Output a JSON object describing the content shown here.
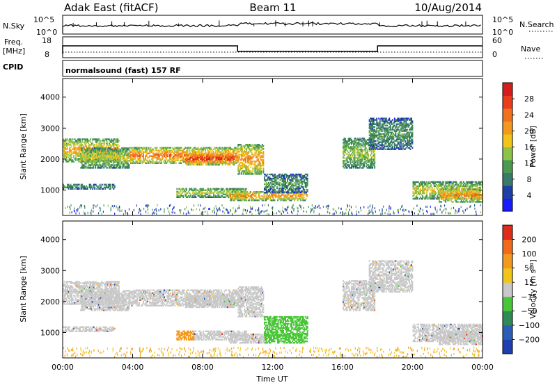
{
  "header": {
    "station": "Adak East (fitACF)",
    "beam": "Beam 11",
    "date": "10/Aug/2014"
  },
  "strips": {
    "nsky_label": "N.Sky",
    "nsky_ticks": [
      "10^5",
      "10^0"
    ],
    "nsearch_label": "N.Search",
    "freq_label": [
      "Freq.",
      "[MHz]"
    ],
    "freq_ticks": [
      "18",
      "8"
    ],
    "nave_label": "Nave",
    "nave_ticks": [
      "60",
      "0"
    ],
    "cpid_label": "CPID",
    "cpid_text": "normalsound (fast) 157 RF"
  },
  "chart_data": [
    {
      "type": "heatmap",
      "title": "",
      "ylabel": "Slant Range [km]",
      "xlabel": "",
      "yticks": [
        "1000",
        "2000",
        "3000",
        "4000"
      ],
      "xticks": [
        "00:00",
        "04:00",
        "08:00",
        "12:00",
        "16:00",
        "20:00",
        "00:00"
      ],
      "xlim": [
        "00:00",
        "24:00"
      ],
      "ylim": [
        180,
        4600
      ],
      "colorbar": {
        "label": "Power [dB]",
        "ticks": [
          "4",
          "8",
          "12",
          "16",
          "20",
          "24",
          "28"
        ],
        "colors": [
          "#1a1aff",
          "#1f3fa6",
          "#3a7a6a",
          "#4b9a4f",
          "#8cc34a",
          "#f0c419",
          "#f29a1d",
          "#f2711c",
          "#ea3b1c",
          "#d61d1d"
        ]
      }
    },
    {
      "type": "heatmap",
      "title": "",
      "ylabel": "Slant Range [km]",
      "xlabel": "Time UT",
      "yticks": [
        "1000",
        "2000",
        "3000",
        "4000"
      ],
      "xticks": [
        "00:00",
        "04:00",
        "08:00",
        "12:00",
        "16:00",
        "20:00",
        "00:00"
      ],
      "xlim": [
        "00:00",
        "24:00"
      ],
      "ylim": [
        180,
        4600
      ],
      "colorbar": {
        "label": "Velocity [m s⁻¹]",
        "ticks": [
          "200",
          "100",
          "50",
          "15",
          "−15",
          "−50",
          "−100",
          "−200"
        ],
        "colors": [
          "#1f3fae",
          "#2a5fb5",
          "#2f8a55",
          "#49c637",
          "#c8c8c8",
          "#f0c419",
          "#f3991f",
          "#f26a1b",
          "#e02b1a"
        ]
      }
    }
  ],
  "style": {
    "axis_color": "#000000",
    "ground_color": "#c8c8c8"
  }
}
